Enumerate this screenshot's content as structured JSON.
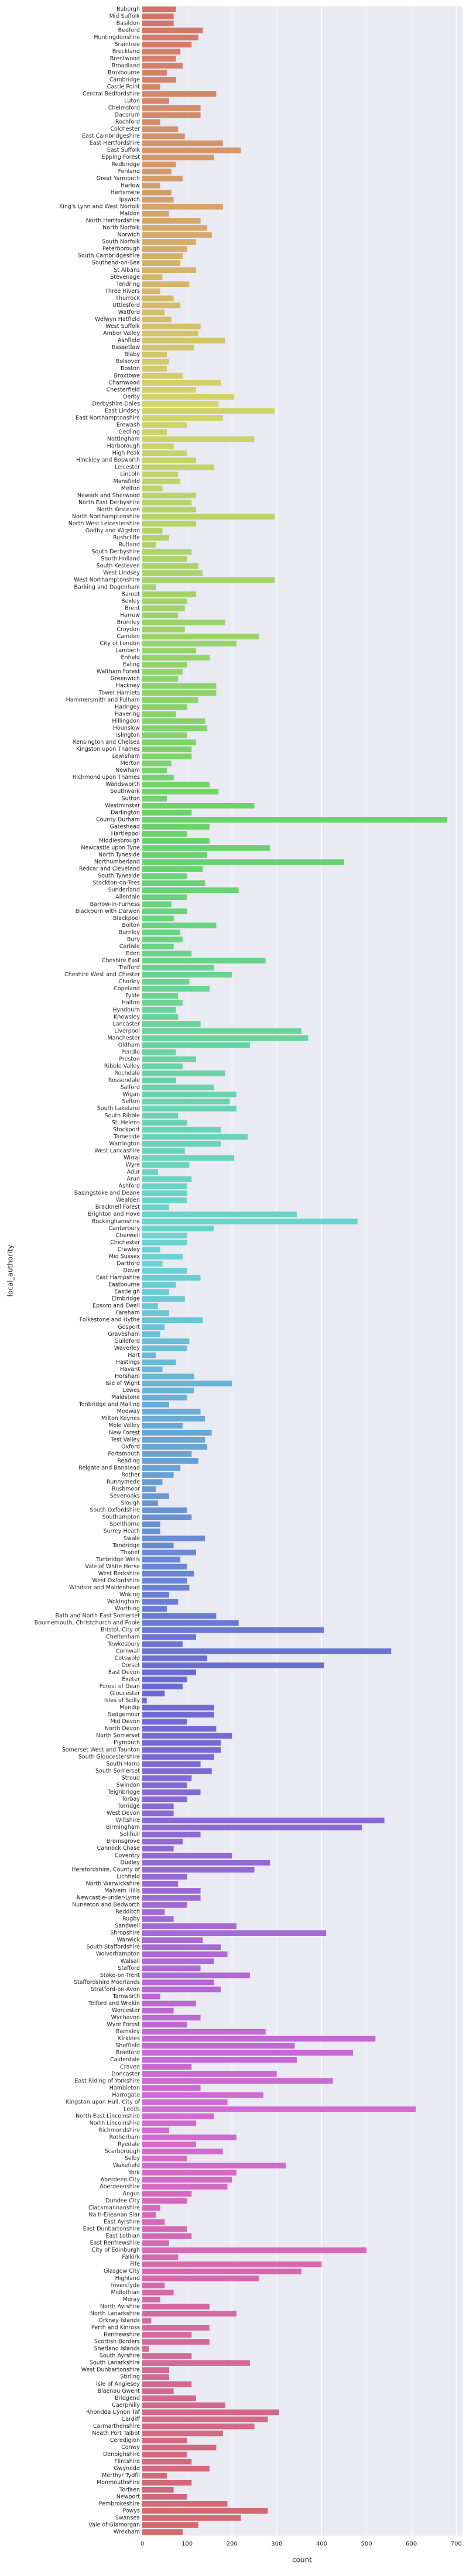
{
  "chart_data": {
    "type": "barh",
    "x_label": "count",
    "y_label": "local_authority",
    "categories": [
      "Babergh",
      "Mid Suffolk",
      "Basildon",
      "Bedford",
      "Huntingdonshire",
      "Braintree",
      "Breckland",
      "Brentwood",
      "Broadland",
      "Broxbourne",
      "Cambridge",
      "Castle Point",
      "Central Bedfordshire",
      "Luton",
      "Chelmsford",
      "Dacorum",
      "Rochford",
      "Colchester",
      "East Cambridgeshire",
      "East Hertfordshire",
      "East Suffolk",
      "Epping Forest",
      "Redbridge",
      "Fenland",
      "Great Yarmouth",
      "Harlow",
      "Hertsmere",
      "Ipswich",
      "King's Lynn and West Norfolk",
      "Maldon",
      "North Hertfordshire",
      "North Norfolk",
      "Norwich",
      "South Norfolk",
      "Peterborough",
      "South Cambridgeshire",
      "Southend-on-Sea",
      "St Albans",
      "Stevenage",
      "Tendring",
      "Three Rivers",
      "Thurrock",
      "Uttlesford",
      "Watford",
      "Welwyn Hatfield",
      "West Suffolk",
      "Amber Valley",
      "Ashfield",
      "Bassetlaw",
      "Blaby",
      "Bolsover",
      "Boston",
      "Broxtowe",
      "Charnwood",
      "Chesterfield",
      "Derby",
      "Derbyshire Dales",
      "East Lindsey",
      "East Northamptonshire",
      "Erewash",
      "Gedling",
      "Nottingham",
      "Harborough",
      "High Peak",
      "Hinckley and Bosworth",
      "Leicester",
      "Lincoln",
      "Mansfield",
      "Melton",
      "Newark and Sherwood",
      "North East Derbyshire",
      "North Kesteven",
      "North Northamptonshire",
      "North West Leicestershire",
      "Oadby and Wigston",
      "Rushcliffe",
      "Rutland",
      "South Derbyshire",
      "South Holland",
      "South Kesteven",
      "West Lindsey",
      "West Northamptonshire",
      "Barking and Dagenham",
      "Barnet",
      "Bexley",
      "Brent",
      "Harrow",
      "Bromley",
      "Croydon",
      "Camden",
      "City of London",
      "Lambeth",
      "Enfield",
      "Ealing",
      "Waltham Forest",
      "Greenwich",
      "Hackney",
      "Tower Hamlets",
      "Hammersmith and Fulham",
      "Haringey",
      "Havering",
      "Hillingdon",
      "Hounslow",
      "Islington",
      "Kensington and Chelsea",
      "Kingston upon Thames",
      "Lewisham",
      "Merton",
      "Newham",
      "Richmond upon Thames",
      "Wandsworth",
      "Southwark",
      "Sutton",
      "Westminster",
      "Darlington",
      "County Durham",
      "Gateshead",
      "Hartlepool",
      "Middlesbrough",
      "Newcastle upon Tyne",
      "North Tyneside",
      "Northumberland",
      "Redcar and Cleveland",
      "South Tyneside",
      "Stockton-on-Tees",
      "Sunderland",
      "Allerdale",
      "Barrow-in-Furness",
      "Blackburn with Darwen",
      "Blackpool",
      "Bolton",
      "Burnley",
      "Bury",
      "Carlisle",
      "Eden",
      "Cheshire East",
      "Trafford",
      "Cheshire West and Chester",
      "Chorley",
      "Copeland",
      "Fylde",
      "Halton",
      "Hyndburn",
      "Knowsley",
      "Lancaster",
      "Liverpool",
      "Manchester",
      "Oldham",
      "Pendle",
      "Preston",
      "Ribble Valley",
      "Rochdale",
      "Rossendale",
      "Salford",
      "Wigan",
      "Sefton",
      "South Lakeland",
      "South Ribble",
      "St. Helens",
      "Stockport",
      "Tameside",
      "Warrington",
      "West Lancashire",
      "Wirral",
      "Wyre",
      "Adur",
      "Arun",
      "Ashford",
      "Basingstoke and Deane",
      "Wealden",
      "Bracknell Forest",
      "Brighton and Hove",
      "Buckinghamshire",
      "Canterbury",
      "Cherwell",
      "Chichester",
      "Crawley",
      "Mid Sussex",
      "Dartford",
      "Dover",
      "East Hampshire",
      "Eastbourne",
      "Eastleigh",
      "Elmbridge",
      "Epsom and Ewell",
      "Fareham",
      "Folkestone and Hythe",
      "Gosport",
      "Gravesham",
      "Guildford",
      "Waverley",
      "Hart",
      "Hastings",
      "Havant",
      "Horsham",
      "Isle of Wight",
      "Lewes",
      "Maidstone",
      "Tonbridge and Malling",
      "Medway",
      "Milton Keynes",
      "Mole Valley",
      "New Forest",
      "Test Valley",
      "Oxford",
      "Portsmouth",
      "Reading",
      "Reigate and Banstead",
      "Rother",
      "Runnymede",
      "Rushmoor",
      "Sevenoaks",
      "Slough",
      "South Oxfordshire",
      "Southampton",
      "Spelthorne",
      "Surrey Heath",
      "Swale",
      "Tandridge",
      "Thanet",
      "Tunbridge Wells",
      "Vale of White Horse",
      "West Berkshire",
      "West Oxfordshire",
      "Windsor and Maidenhead",
      "Woking",
      "Wokingham",
      "Worthing",
      "Bath and North East Somerset",
      "Bournemouth, Christchurch and Poole",
      "Bristol, City of",
      "Cheltenham",
      "Tewkesbury",
      "Cornwall",
      "Cotswold",
      "Dorset",
      "East Devon",
      "Exeter",
      "Forest of Dean",
      "Gloucester",
      "Isles of Scilly",
      "Mendip",
      "Sedgemoor",
      "Mid Devon",
      "North Devon",
      "North Somerset",
      "Plymouth",
      "Somerset West and Taunton",
      "South Gloucestershire",
      "South Hams",
      "South Somerset",
      "Stroud",
      "Swindon",
      "Teignbridge",
      "Torbay",
      "Torridge",
      "West Devon",
      "Wiltshire",
      "Birmingham",
      "Solihull",
      "Bromsgrove",
      "Cannock Chase",
      "Coventry",
      "Dudley",
      "Herefordshire, County of",
      "Lichfield",
      "North Warwickshire",
      "Malvern Hills",
      "Newcastle-under-Lyme",
      "Nuneaton and Bedworth",
      "Redditch",
      "Rugby",
      "Sandwell",
      "Shropshire",
      "Warwick",
      "South Staffordshire",
      "Wolverhampton",
      "Walsall",
      "Stafford",
      "Stoke-on-Trent",
      "Staffordshire Moorlands",
      "Stratford-on-Avon",
      "Tamworth",
      "Telford and Wrekin",
      "Worcester",
      "Wychavon",
      "Wyre Forest",
      "Barnsley",
      "Kirklees",
      "Sheffield",
      "Bradford",
      "Calderdale",
      "Craven",
      "Doncaster",
      "East Riding of Yorkshire",
      "Hambleton",
      "Harrogate",
      "Kingston upon Hull, City of",
      "Leeds",
      "North East Lincolnshire",
      "North Lincolnshire",
      "Richmondshire",
      "Rotherham",
      "Ryedale",
      "Scarborough",
      "Selby",
      "Wakefield",
      "York",
      "Aberdeen City",
      "Aberdeenshire",
      "Angus",
      "Dundee City",
      "Clackmannanshire",
      "Na h-Eileanan Siar",
      "East Ayrshire",
      "East Dunbartonshire",
      "East Lothian",
      "East Renfrewshire",
      "City of Edinburgh",
      "Falkirk",
      "Fife",
      "Glasgow City",
      "Highland",
      "Inverclyde",
      "Midlothian",
      "Moray",
      "North Ayrshire",
      "North Lanarkshire",
      "Orkney Islands",
      "Perth and Kinross",
      "Renfrewshire",
      "Scottish Borders",
      "Shetland Islands",
      "South Ayrshire",
      "South Lanarkshire",
      "West Dunbartonshire",
      "Stirling",
      "Isle of Anglesey",
      "Blaenau Gwent",
      "Bridgend",
      "Caerphilly",
      "Rhondda Cynon Taf",
      "Cardiff",
      "Carmarthenshire",
      "Neath Port Talbot",
      "Ceredigion",
      "Conwy",
      "Denbighshire",
      "Flintshire",
      "Gwynedd",
      "Merthyr Tydfil",
      "Monmouthshire",
      "Torfaen",
      "Newport",
      "Pembrokeshire",
      "Powys",
      "Swansea",
      "Vale of Glamorgan",
      "Wrexham"
    ],
    "values": [
      75,
      70,
      70,
      135,
      125,
      110,
      85,
      75,
      90,
      55,
      75,
      40,
      165,
      60,
      130,
      130,
      40,
      80,
      95,
      180,
      220,
      160,
      75,
      65,
      90,
      40,
      65,
      70,
      180,
      60,
      130,
      145,
      155,
      120,
      100,
      90,
      85,
      120,
      45,
      105,
      40,
      70,
      85,
      50,
      65,
      130,
      125,
      185,
      115,
      55,
      60,
      55,
      90,
      175,
      120,
      205,
      170,
      295,
      180,
      100,
      55,
      250,
      70,
      100,
      120,
      160,
      80,
      85,
      45,
      120,
      110,
      120,
      295,
      120,
      45,
      60,
      30,
      110,
      100,
      125,
      135,
      295,
      30,
      120,
      100,
      95,
      80,
      185,
      95,
      260,
      210,
      120,
      150,
      100,
      90,
      80,
      165,
      165,
      125,
      100,
      75,
      140,
      145,
      100,
      120,
      110,
      110,
      65,
      55,
      70,
      150,
      170,
      55,
      250,
      110,
      680,
      150,
      100,
      150,
      285,
      145,
      450,
      135,
      100,
      140,
      215,
      100,
      65,
      100,
      70,
      165,
      85,
      90,
      70,
      110,
      275,
      160,
      200,
      105,
      150,
      80,
      90,
      75,
      80,
      130,
      355,
      370,
      240,
      75,
      120,
      90,
      185,
      75,
      160,
      210,
      195,
      210,
      80,
      100,
      175,
      235,
      175,
      95,
      205,
      105,
      35,
      110,
      100,
      100,
      100,
      60,
      345,
      480,
      160,
      100,
      100,
      40,
      90,
      45,
      100,
      130,
      75,
      60,
      95,
      35,
      60,
      135,
      50,
      40,
      105,
      100,
      30,
      75,
      45,
      115,
      200,
      115,
      100,
      60,
      130,
      140,
      90,
      155,
      140,
      145,
      110,
      125,
      85,
      70,
      45,
      30,
      60,
      35,
      100,
      110,
      40,
      40,
      140,
      70,
      120,
      85,
      100,
      115,
      100,
      105,
      60,
      80,
      55,
      165,
      215,
      405,
      120,
      90,
      555,
      145,
      405,
      120,
      100,
      90,
      50,
      10,
      160,
      160,
      100,
      165,
      200,
      175,
      175,
      160,
      130,
      155,
      110,
      100,
      130,
      100,
      70,
      70,
      540,
      490,
      130,
      90,
      70,
      200,
      285,
      250,
      100,
      80,
      130,
      130,
      100,
      50,
      70,
      210,
      410,
      135,
      175,
      190,
      160,
      130,
      240,
      160,
      175,
      40,
      120,
      70,
      130,
      100,
      275,
      520,
      340,
      470,
      345,
      110,
      300,
      425,
      130,
      270,
      190,
      610,
      160,
      120,
      60,
      210,
      120,
      180,
      100,
      320,
      210,
      200,
      190,
      110,
      100,
      40,
      30,
      50,
      100,
      110,
      60,
      500,
      80,
      400,
      355,
      260,
      50,
      70,
      40,
      150,
      210,
      20,
      150,
      110,
      150,
      15,
      110,
      240,
      60,
      60,
      110,
      70,
      120,
      185,
      305,
      280,
      250,
      180,
      100,
      165,
      100,
      110,
      150,
      55,
      110,
      70,
      100,
      190,
      280,
      220,
      125,
      90
    ],
    "palette": "husl",
    "background": "#eaeaf2",
    "xlim": [
      0,
      714
    ],
    "xticks": [
      0,
      100,
      200,
      300,
      400,
      500,
      600,
      700
    ],
    "grid": true
  }
}
